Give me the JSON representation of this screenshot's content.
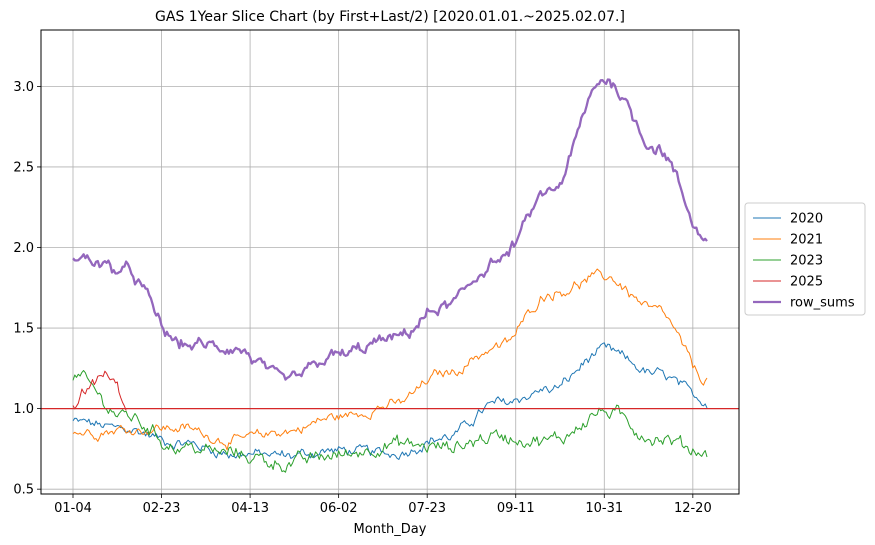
{
  "chart_data": {
    "type": "line",
    "title": "GAS 1Year Slice Chart (by First+Last/2) [2020.01.01.~2025.02.07.]",
    "xlabel": "Month_Day",
    "ylabel": "",
    "x_ticks": [
      "01-04",
      "02-23",
      "04-13",
      "06-02",
      "07-23",
      "09-11",
      "10-31",
      "12-20"
    ],
    "ylim": [
      0.47,
      3.35
    ],
    "y_ticks": [
      0.5,
      1.0,
      1.5,
      2.0,
      2.5,
      3.0
    ],
    "grid": true,
    "legend_position": "center-right",
    "reference_line": {
      "y": 1.0,
      "color": "#d62728"
    },
    "x_knots": [
      "01-04",
      "02-03",
      "03-04",
      "04-03",
      "05-03",
      "06-02",
      "07-02",
      "08-01",
      "08-31",
      "09-30",
      "10-30",
      "11-29",
      "12-28"
    ],
    "series": [
      {
        "name": "2020",
        "color": "#1f77b4",
        "width": 1,
        "noise": 0.03,
        "values": [
          0.92,
          0.87,
          0.79,
          0.72,
          0.71,
          0.74,
          0.72,
          0.82,
          1.03,
          1.12,
          1.36,
          1.21,
          1.05
        ]
      },
      {
        "name": "2021",
        "color": "#ff7f0e",
        "width": 1,
        "noise": 0.03,
        "values": [
          0.85,
          0.87,
          0.88,
          0.8,
          0.86,
          0.95,
          1.02,
          1.22,
          1.38,
          1.72,
          1.82,
          1.6,
          1.18
        ]
      },
      {
        "name": "2023",
        "color": "#2ca02c",
        "width": 1,
        "noise": 0.04,
        "values": [
          1.2,
          0.95,
          0.76,
          0.72,
          0.66,
          0.71,
          0.78,
          0.76,
          0.83,
          0.8,
          0.98,
          0.82,
          0.73
        ]
      },
      {
        "name": "2025",
        "color": "#d62728",
        "width": 1,
        "noise": 0.03,
        "values": [
          1.0,
          1.1,
          1.17,
          1.22,
          1.16,
          0.97
        ],
        "x_days": [
          0,
          6,
          12,
          18,
          24,
          30
        ]
      },
      {
        "name": "row_sums",
        "color": "#9467bd",
        "width": 2.3,
        "noise": 0.035,
        "values": [
          1.95,
          1.85,
          1.4,
          1.38,
          1.17,
          1.33,
          1.43,
          1.63,
          1.92,
          2.35,
          3.05,
          2.62,
          2.05
        ]
      }
    ]
  }
}
